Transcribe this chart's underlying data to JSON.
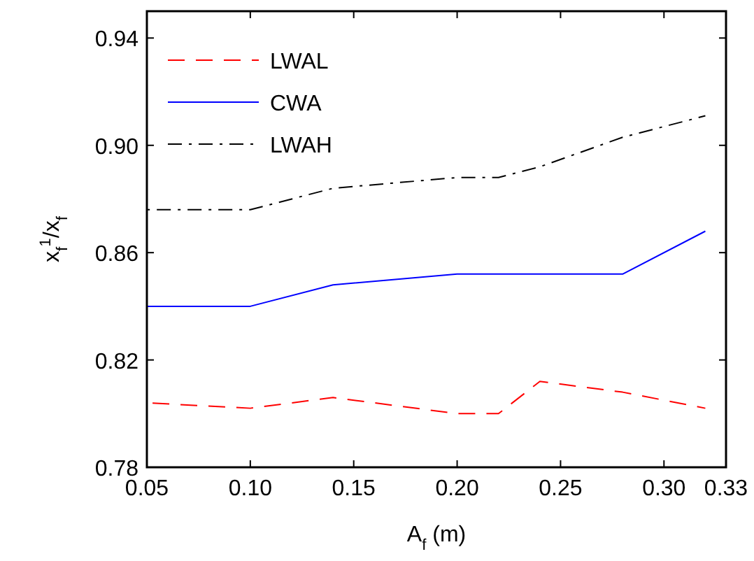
{
  "chart_data": {
    "type": "line",
    "xlabel": "A$_{f}$ (m)",
    "ylabel": "x$_{f}$$^{1}$/x$_{f}$",
    "x": [
      0.05,
      0.1,
      0.14,
      0.2,
      0.22,
      0.24,
      0.28,
      0.32
    ],
    "series": [
      {
        "name": "LWAL",
        "color": "#ff0000",
        "line_style": "dashed",
        "values": [
          0.804,
          0.802,
          0.806,
          0.8,
          0.8,
          0.812,
          0.808,
          0.802
        ]
      },
      {
        "name": "CWA",
        "color": "#0000ff",
        "line_style": "solid",
        "values": [
          0.84,
          0.84,
          0.848,
          0.852,
          0.852,
          0.852,
          0.852,
          0.868
        ]
      },
      {
        "name": "LWAH",
        "color": "#000000",
        "line_style": "dashdot",
        "values": [
          0.876,
          0.876,
          0.884,
          0.888,
          0.888,
          0.892,
          0.903,
          0.911
        ]
      }
    ],
    "xlim": [
      0.05,
      0.33
    ],
    "xticks": [
      {
        "value": 0.05,
        "label": "0.05"
      },
      {
        "value": 0.1,
        "label": "0.10"
      },
      {
        "value": 0.15,
        "label": "0.15"
      },
      {
        "value": 0.2,
        "label": "0.20"
      },
      {
        "value": 0.25,
        "label": "0.25"
      },
      {
        "value": 0.3,
        "label": "0.30"
      },
      {
        "value": 0.33,
        "label": "0.33"
      }
    ],
    "ylim": [
      0.78,
      0.95
    ],
    "yticks": [
      0.78,
      0.82,
      0.86,
      {
        "value": 0.9,
        "label": "0.90"
      },
      0.94
    ],
    "grid": false,
    "legend": "top left",
    "marker": "none"
  }
}
